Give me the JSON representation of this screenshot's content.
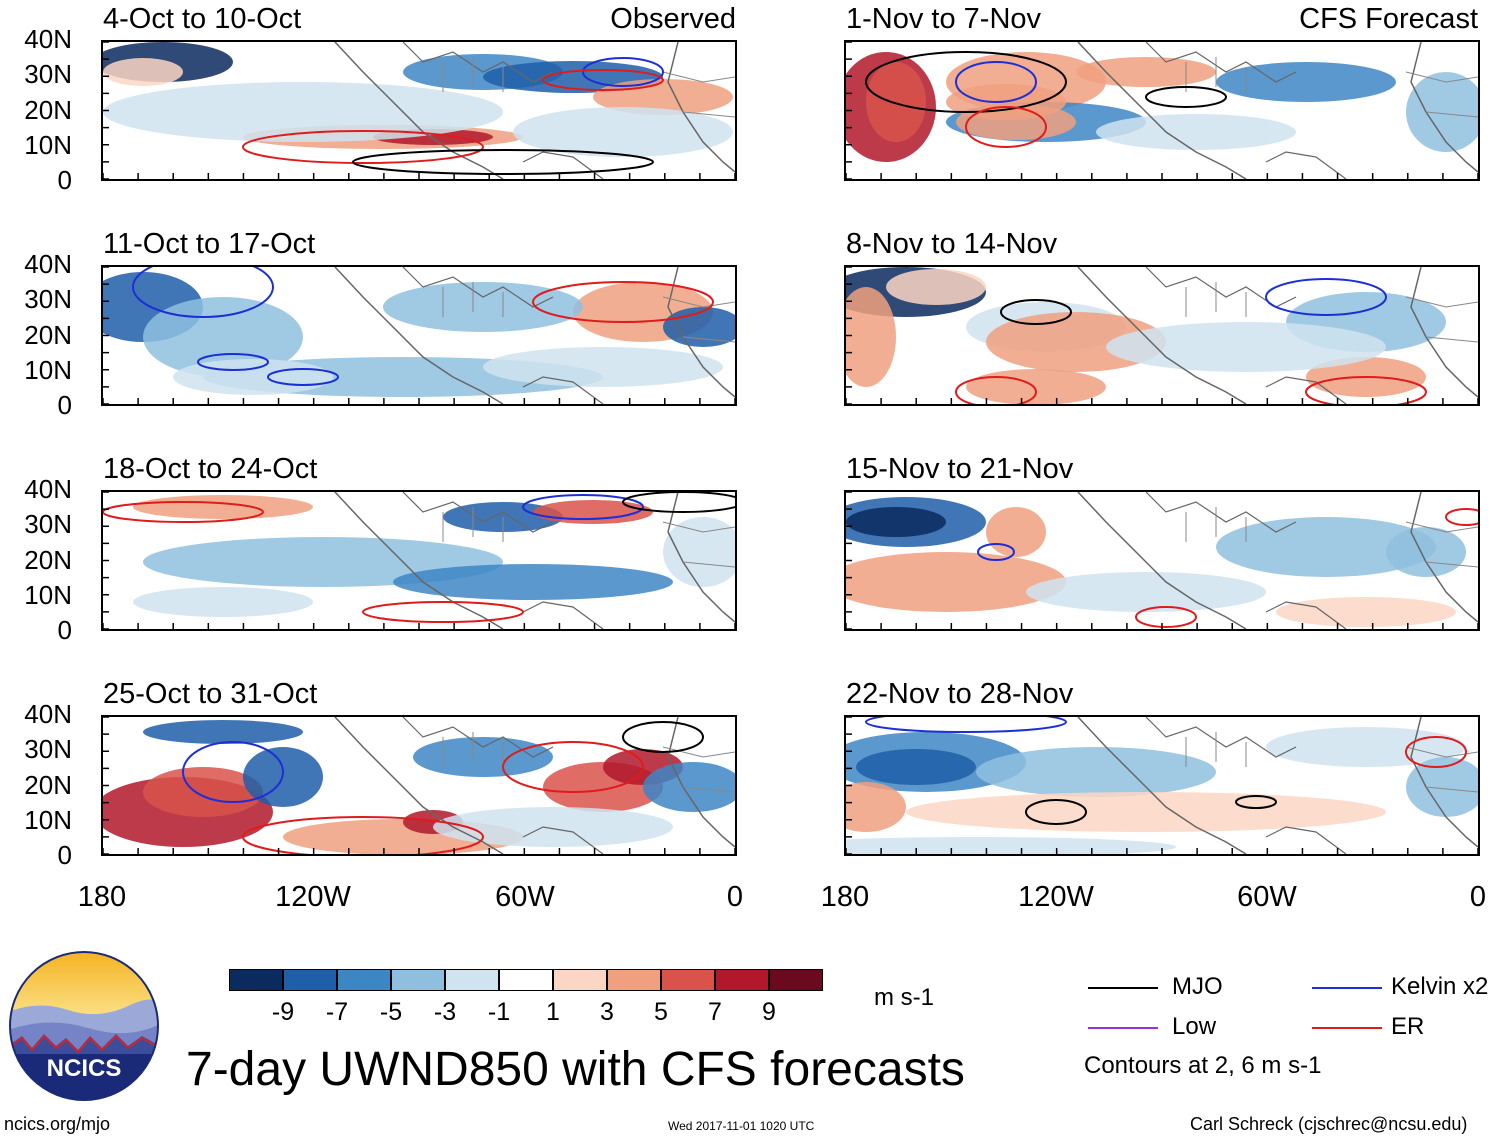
{
  "header": {
    "left_label": "Observed",
    "right_label": "CFS Forecast"
  },
  "lat_labels": [
    "40N",
    "30N",
    "20N",
    "10N",
    "0"
  ],
  "lon_labels": [
    "180",
    "120W",
    "60W",
    "0"
  ],
  "panels_observed": [
    {
      "title": "4-Oct to 10-Oct"
    },
    {
      "title": "11-Oct to 17-Oct"
    },
    {
      "title": "18-Oct to 24-Oct"
    },
    {
      "title": "25-Oct to 31-Oct"
    }
  ],
  "panels_forecast": [
    {
      "title": "1-Nov to 7-Nov"
    },
    {
      "title": "8-Nov to 14-Nov"
    },
    {
      "title": "15-Nov to 21-Nov"
    },
    {
      "title": "22-Nov to 28-Nov"
    }
  ],
  "colorbar": {
    "ticks": [
      "-9",
      "-7",
      "-5",
      "-3",
      "-1",
      "1",
      "3",
      "5",
      "7",
      "9"
    ],
    "colors": [
      "#0b2a5e",
      "#1f5ea8",
      "#3d86c4",
      "#8fbfdf",
      "#cfe3f0",
      "#ffffff",
      "#fbd6c4",
      "#f0a07f",
      "#d9534a",
      "#b2182b",
      "#6b0a1e"
    ],
    "units": "m s-1"
  },
  "legend": {
    "mjo": "MJO",
    "kelvin": "Kelvin x2",
    "low": "Low",
    "er": "ER",
    "contours_note": "Contours at 2, 6 m s-1",
    "colors": {
      "mjo": "#000000",
      "kelvin": "#1c2fd6",
      "low": "#9b30d9",
      "er": "#e01b1b"
    }
  },
  "logo_text": "NCICS",
  "main_title": "7-day UWND850 with CFS forecasts",
  "footer": {
    "url": "ncics.org/mjo",
    "timestamp": "Wed 2017-11-01 1020 UTC",
    "credit": "Carl Schreck (cjschrec@ncsu.edu)"
  }
}
